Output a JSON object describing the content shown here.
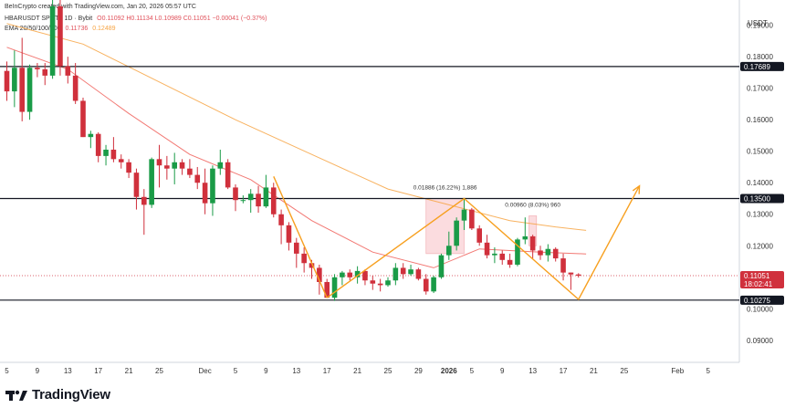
{
  "header": {
    "created_by": "BeInCrypto created with TradingView.com, Jan 20, 2026 05:57 UTC",
    "symbol": "HBARUSDT SPOT · 1D · Bybit",
    "ohlc": "O0.11092 H0.11134 L0.10989 C0.11051 −0.00041 (−0.37%)",
    "ema_label": "EMA 20/50/100/200",
    "ema_vals_a": "0.11736",
    "ema_vals_b": "0.12489"
  },
  "axis_unit": "USDT",
  "price_labels": {
    "upper": "0.17689",
    "middle": "0.13500",
    "current": "0.11051",
    "countdown": "18:02:41",
    "lower": "0.10275"
  },
  "annotations": {
    "box1": "0.01886 (16.22%) 1,886",
    "box2": "0.00960 (8.03%) 960"
  },
  "brand": "TradingView",
  "colors": {
    "up": "#26a69a",
    "up_candle": "#1a9b47",
    "down": "#d0303c",
    "ema_red": "#f0605a",
    "ema_orange": "#f7a444",
    "pattern": "#f7a020",
    "level": "#131722"
  },
  "chart_data": {
    "type": "candlestick",
    "y_ticks": [
      0.19,
      0.18,
      0.17,
      0.16,
      0.15,
      0.14,
      0.13,
      0.12,
      0.11,
      0.1,
      0.09
    ],
    "ylim": [
      0.083,
      0.198
    ],
    "x_ticks": [
      {
        "label": "5",
        "day": 0
      },
      {
        "label": "9",
        "day": 4
      },
      {
        "label": "13",
        "day": 8
      },
      {
        "label": "17",
        "day": 12
      },
      {
        "label": "21",
        "day": 16
      },
      {
        "label": "25",
        "day": 20
      },
      {
        "label": "Dec",
        "day": 26
      },
      {
        "label": "5",
        "day": 30
      },
      {
        "label": "9",
        "day": 34
      },
      {
        "label": "13",
        "day": 38
      },
      {
        "label": "17",
        "day": 42
      },
      {
        "label": "21",
        "day": 46
      },
      {
        "label": "25",
        "day": 50
      },
      {
        "label": "29",
        "day": 54
      },
      {
        "label": "2026",
        "day": 58
      },
      {
        "label": "5",
        "day": 61
      },
      {
        "label": "9",
        "day": 65
      },
      {
        "label": "13",
        "day": 69
      },
      {
        "label": "17",
        "day": 73
      },
      {
        "label": "21",
        "day": 77
      },
      {
        "label": "25",
        "day": 81
      },
      {
        "label": "Feb",
        "day": 88
      },
      {
        "label": "5",
        "day": 92
      }
    ],
    "horizontal_levels": [
      0.17689,
      0.135,
      0.10275
    ],
    "candles": [
      [
        0.1755,
        0.1785,
        0.166,
        0.169
      ],
      [
        0.169,
        0.182,
        0.164,
        0.1765
      ],
      [
        0.1765,
        0.186,
        0.1595,
        0.1625
      ],
      [
        0.1625,
        0.1775,
        0.16,
        0.1765
      ],
      [
        0.1765,
        0.178,
        0.1735,
        0.176
      ],
      [
        0.176,
        0.178,
        0.171,
        0.174
      ],
      [
        0.174,
        0.198,
        0.173,
        0.196
      ],
      [
        0.196,
        0.198,
        0.174,
        0.177
      ],
      [
        0.177,
        0.18,
        0.1715,
        0.174
      ],
      [
        0.174,
        0.178,
        0.165,
        0.166
      ],
      [
        0.166,
        0.167,
        0.1545,
        0.1545
      ],
      [
        0.1545,
        0.1565,
        0.151,
        0.1555
      ],
      [
        0.1555,
        0.156,
        0.1465,
        0.1485
      ],
      [
        0.1485,
        0.152,
        0.1455,
        0.1505
      ],
      [
        0.1505,
        0.1545,
        0.1465,
        0.1475
      ],
      [
        0.1475,
        0.149,
        0.1445,
        0.1465
      ],
      [
        0.1465,
        0.1475,
        0.1415,
        0.1432
      ],
      [
        0.1432,
        0.1445,
        0.1315,
        0.1355
      ],
      [
        0.1355,
        0.138,
        0.1235,
        0.133
      ],
      [
        0.133,
        0.148,
        0.132,
        0.1475
      ],
      [
        0.1475,
        0.152,
        0.1385,
        0.1455
      ],
      [
        0.1455,
        0.1485,
        0.141,
        0.1445
      ],
      [
        0.1445,
        0.1495,
        0.1395,
        0.1465
      ],
      [
        0.1465,
        0.1475,
        0.1425,
        0.1445
      ],
      [
        0.1445,
        0.1475,
        0.1415,
        0.1425
      ],
      [
        0.1425,
        0.145,
        0.138,
        0.14
      ],
      [
        0.14,
        0.1445,
        0.13,
        0.1335
      ],
      [
        0.1335,
        0.1455,
        0.1295,
        0.1445
      ],
      [
        0.1445,
        0.1505,
        0.1425,
        0.1465
      ],
      [
        0.1465,
        0.1475,
        0.138,
        0.1385
      ],
      [
        0.1385,
        0.1395,
        0.131,
        0.1345
      ],
      [
        0.1345,
        0.136,
        0.1335,
        0.1345
      ],
      [
        0.1345,
        0.138,
        0.1305,
        0.1365
      ],
      [
        0.1365,
        0.139,
        0.1305,
        0.1325
      ],
      [
        0.1325,
        0.1425,
        0.132,
        0.1385
      ],
      [
        0.1385,
        0.14,
        0.129,
        0.13
      ],
      [
        0.13,
        0.1315,
        0.1205,
        0.1265
      ],
      [
        0.1265,
        0.1275,
        0.1185,
        0.121
      ],
      [
        0.121,
        0.1225,
        0.113,
        0.1175
      ],
      [
        0.1175,
        0.1195,
        0.1115,
        0.1145
      ],
      [
        0.1145,
        0.1155,
        0.1095,
        0.113
      ],
      [
        0.113,
        0.114,
        0.1045,
        0.1085
      ],
      [
        0.1085,
        0.1095,
        0.1035,
        0.1035
      ],
      [
        0.1035,
        0.111,
        0.1025,
        0.11
      ],
      [
        0.11,
        0.112,
        0.1075,
        0.1115
      ],
      [
        0.1115,
        0.1125,
        0.109,
        0.11
      ],
      [
        0.11,
        0.1135,
        0.108,
        0.112
      ],
      [
        0.112,
        0.1125,
        0.1075,
        0.109
      ],
      [
        0.109,
        0.1105,
        0.106,
        0.108
      ],
      [
        0.108,
        0.1095,
        0.1055,
        0.1075
      ],
      [
        0.1075,
        0.11,
        0.107,
        0.109
      ],
      [
        0.109,
        0.1145,
        0.1075,
        0.113
      ],
      [
        0.113,
        0.1145,
        0.1095,
        0.111
      ],
      [
        0.111,
        0.114,
        0.1105,
        0.1125
      ],
      [
        0.1125,
        0.113,
        0.109,
        0.1095
      ],
      [
        0.1095,
        0.111,
        0.1045,
        0.1055
      ],
      [
        0.1055,
        0.1105,
        0.105,
        0.11
      ],
      [
        0.11,
        0.1175,
        0.1095,
        0.117
      ],
      [
        0.117,
        0.1245,
        0.1155,
        0.12
      ],
      [
        0.12,
        0.129,
        0.1185,
        0.128
      ],
      [
        0.128,
        0.135,
        0.125,
        0.1315
      ],
      [
        0.1315,
        0.132,
        0.125,
        0.1255
      ],
      [
        0.1255,
        0.1265,
        0.12,
        0.121
      ],
      [
        0.121,
        0.1235,
        0.116,
        0.117
      ],
      [
        0.117,
        0.1195,
        0.1145,
        0.1175
      ],
      [
        0.1175,
        0.1185,
        0.114,
        0.1155
      ],
      [
        0.1155,
        0.1175,
        0.113,
        0.114
      ],
      [
        0.114,
        0.1225,
        0.1135,
        0.122
      ],
      [
        0.122,
        0.129,
        0.1205,
        0.123
      ],
      [
        0.123,
        0.1235,
        0.116,
        0.1185
      ],
      [
        0.1185,
        0.12,
        0.1155,
        0.117
      ],
      [
        0.117,
        0.1205,
        0.115,
        0.119
      ],
      [
        0.119,
        0.1195,
        0.115,
        0.116
      ],
      [
        0.116,
        0.1175,
        0.109,
        0.1115
      ],
      [
        0.1115,
        0.1115,
        0.106,
        0.1109
      ],
      [
        0.1109,
        0.1113,
        0.1099,
        0.1105
      ]
    ],
    "ema_short": [
      [
        0,
        0.183
      ],
      [
        8,
        0.176
      ],
      [
        16,
        0.162
      ],
      [
        24,
        0.149
      ],
      [
        32,
        0.141
      ],
      [
        40,
        0.128
      ],
      [
        48,
        0.118
      ],
      [
        56,
        0.113
      ],
      [
        62,
        0.119
      ],
      [
        70,
        0.118
      ],
      [
        76,
        0.1174
      ]
    ],
    "ema_long": [
      [
        0,
        0.1905
      ],
      [
        10,
        0.184
      ],
      [
        20,
        0.172
      ],
      [
        30,
        0.16
      ],
      [
        40,
        0.149
      ],
      [
        50,
        0.138
      ],
      [
        58,
        0.133
      ],
      [
        66,
        0.128
      ],
      [
        72,
        0.126
      ],
      [
        76,
        0.1249
      ]
    ],
    "pattern_path": [
      [
        42,
        0.1035
      ],
      [
        60,
        0.135
      ],
      [
        75,
        0.103
      ],
      [
        83,
        0.139
      ]
    ],
    "pattern_path_2": [
      [
        35,
        0.142
      ],
      [
        42,
        0.1035
      ]
    ],
    "highlight_box_1": {
      "x0": 55,
      "x1": 60,
      "y0": 0.1175,
      "y1": 0.135
    },
    "highlight_box_2": {
      "x0": 68.5,
      "x1": 69.5,
      "y0": 0.12,
      "y1": 0.1295
    }
  }
}
